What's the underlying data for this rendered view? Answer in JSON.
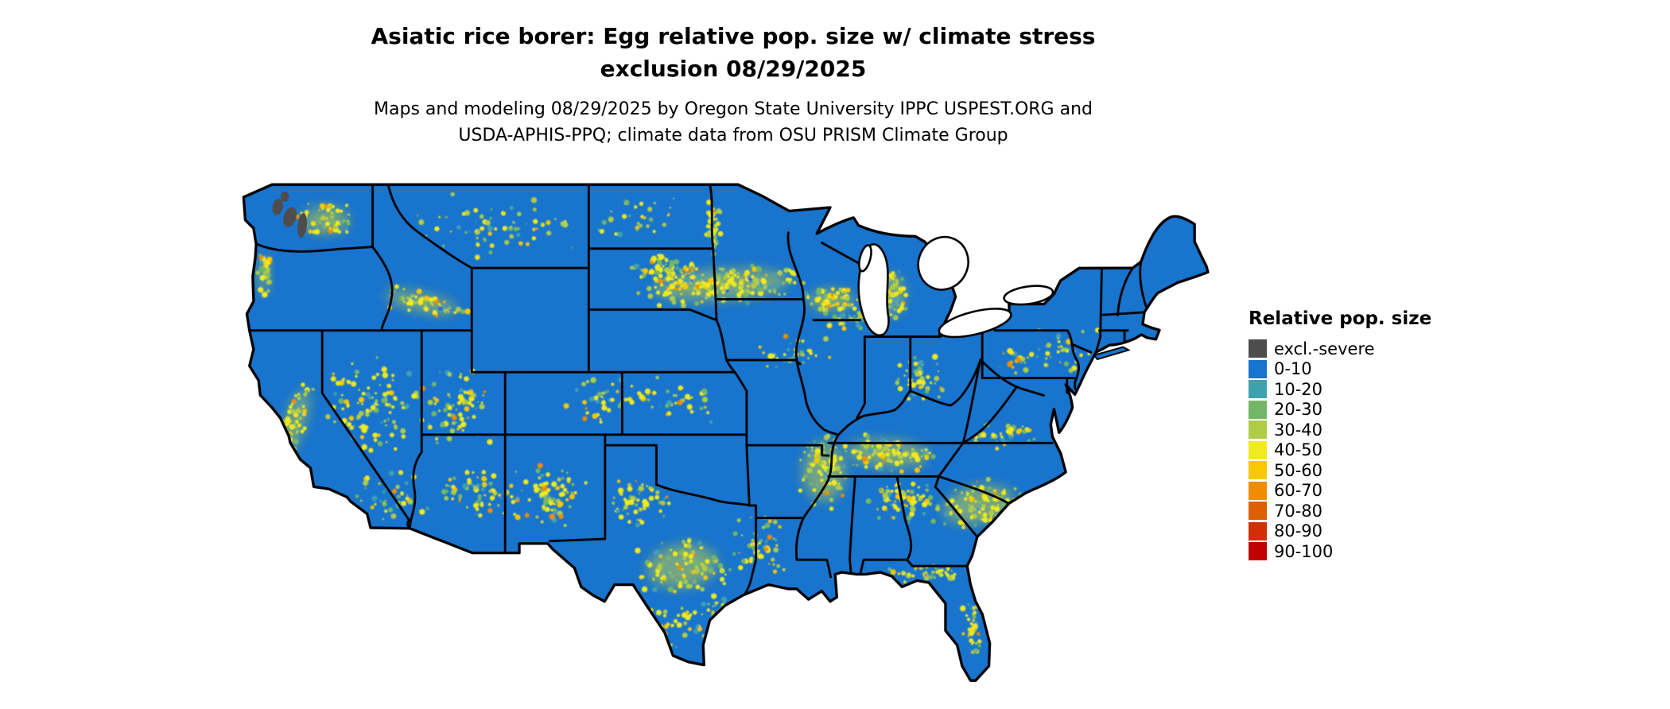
{
  "header": {
    "title_line1": "Asiatic rice borer: Egg relative pop. size w/ climate stress",
    "title_line2": "exclusion 08/29/2025",
    "subtitle_line1": "Maps and modeling 08/29/2025 by Oregon State University IPPC USPEST.ORG and",
    "subtitle_line2": "USDA-APHIS-PPQ; climate data from OSU PRISM Climate Group"
  },
  "legend": {
    "title": "Relative pop. size",
    "items": [
      {
        "label": "excl.-severe",
        "color": "#4D4D4D"
      },
      {
        "label": "0-10",
        "color": "#1874CD"
      },
      {
        "label": "10-20",
        "color": "#3FA0AE"
      },
      {
        "label": "20-30",
        "color": "#73B766"
      },
      {
        "label": "30-40",
        "color": "#AFCC48"
      },
      {
        "label": "40-50",
        "color": "#F0EA1E"
      },
      {
        "label": "50-60",
        "color": "#F9C802"
      },
      {
        "label": "60-70",
        "color": "#F08C00"
      },
      {
        "label": "70-80",
        "color": "#DD5F00"
      },
      {
        "label": "80-90",
        "color": "#D13004"
      },
      {
        "label": "90-100",
        "color": "#C00000"
      }
    ]
  },
  "map": {
    "base_color": "#1874CD",
    "border_color": "#000000",
    "water_color": "#FFFFFF",
    "excl_color": "#4D4D4D",
    "wash_color": "#E3DF2C",
    "speckle_palette": [
      [
        "#F0EA1E",
        0.42
      ],
      [
        "#AFCC48",
        0.2
      ],
      [
        "#73B766",
        0.14
      ],
      [
        "#3FA0AE",
        0.1
      ],
      [
        "#F9C802",
        0.1
      ],
      [
        "#F08C00",
        0.03
      ],
      [
        "#1874CD",
        0.01
      ]
    ],
    "speckle_clusters": [
      [
        470,
        118,
        88,
        20,
        200,
        -4,
        1
      ],
      [
        415,
        103,
        40,
        16,
        80,
        0,
        0
      ],
      [
        577,
        133,
        30,
        14,
        70,
        0,
        1
      ],
      [
        604,
        152,
        38,
        10,
        50,
        0,
        0
      ],
      [
        636,
        127,
        16,
        26,
        80,
        0,
        1
      ],
      [
        464,
        62,
        10,
        30,
        40,
        0,
        0
      ],
      [
        240,
        60,
        95,
        34,
        70,
        0,
        0
      ],
      [
        85,
        55,
        30,
        18,
        60,
        0,
        1
      ],
      [
        25,
        108,
        7,
        26,
        40,
        0,
        1
      ],
      [
        178,
        135,
        48,
        12,
        55,
        12,
        1
      ],
      [
        128,
        235,
        55,
        52,
        110,
        0,
        0
      ],
      [
        213,
        235,
        33,
        45,
        70,
        0,
        0
      ],
      [
        55,
        252,
        13,
        44,
        70,
        18,
        1
      ],
      [
        150,
        322,
        40,
        26,
        40,
        0,
        0
      ],
      [
        237,
        322,
        42,
        24,
        70,
        8,
        0
      ],
      [
        302,
        322,
        40,
        34,
        75,
        0,
        0
      ],
      [
        352,
        232,
        35,
        24,
        40,
        0,
        0
      ],
      [
        390,
        330,
        34,
        28,
        55,
        0,
        0
      ],
      [
        432,
        392,
        46,
        28,
        100,
        -8,
        1
      ],
      [
        432,
        452,
        32,
        22,
        35,
        0,
        0
      ],
      [
        505,
        372,
        28,
        33,
        55,
        0,
        0
      ],
      [
        570,
        300,
        28,
        38,
        80,
        0,
        1
      ],
      [
        632,
        282,
        52,
        18,
        100,
        4,
        1
      ],
      [
        645,
        330,
        36,
        24,
        70,
        0,
        0
      ],
      [
        720,
        332,
        46,
        24,
        80,
        -12,
        1
      ],
      [
        747,
        262,
        34,
        16,
        40,
        -8,
        0
      ],
      [
        668,
        400,
        38,
        10,
        45,
        0,
        0
      ],
      [
        713,
        452,
        11,
        28,
        35,
        0,
        0
      ],
      [
        430,
        230,
        50,
        24,
        40,
        0,
        0
      ],
      [
        663,
        207,
        36,
        24,
        45,
        0,
        0
      ],
      [
        800,
        182,
        42,
        24,
        30,
        0,
        0
      ],
      [
        390,
        52,
        45,
        22,
        30,
        0,
        0
      ],
      [
        758,
        192,
        24,
        16,
        20,
        0,
        0
      ],
      [
        470,
        430,
        25,
        13,
        25,
        0,
        0
      ],
      [
        540,
        185,
        40,
        18,
        30,
        0,
        0
      ],
      [
        705,
        511,
        10,
        3,
        10,
        0,
        0
      ]
    ]
  }
}
